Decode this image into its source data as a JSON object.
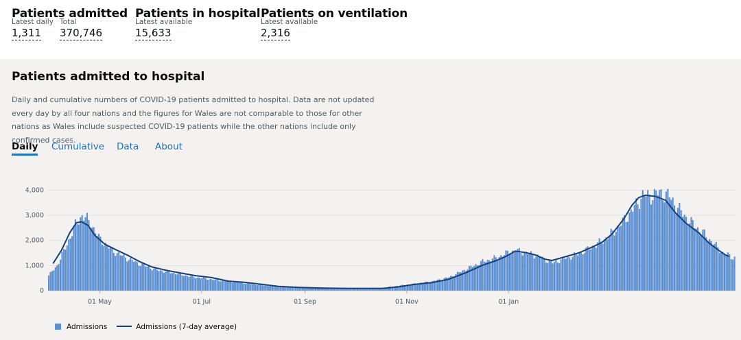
{
  "summary": {
    "admitted": {
      "title": "Patients admitted",
      "daily_label": "Latest daily",
      "daily_value": "1,311",
      "total_label": "Total",
      "total_value": "370,746"
    },
    "in_hospital": {
      "title": "Patients in hospital",
      "label": "Latest available",
      "value": "15,633"
    },
    "ventilation": {
      "title": "Patients on ventilation",
      "label": "Latest available",
      "value": "2,316"
    }
  },
  "card": {
    "title": "Patients admitted to hospital",
    "description": "Daily and cumulative numbers of COVID-19 patients admitted to hospital. Data are not updated every day by all four nations and the figures for Wales are not comparable to those for other nations as Wales include suspected COVID-19 patients while the other nations include only confirmed cases.",
    "tabs": [
      "Daily",
      "Cumulative",
      "Data",
      "About"
    ],
    "active_tab": "Daily"
  },
  "legend": {
    "bars": "Admissions",
    "line": "Admissions (7-day average)"
  },
  "colors": {
    "bar": "#5b8fd1",
    "line": "#12407f",
    "accent": "#1d70b8"
  },
  "chart_data": {
    "type": "bar",
    "title": "Patients admitted to hospital",
    "ylim": [
      0,
      4200
    ],
    "y_ticks": [
      "0",
      "1,000",
      "2,000",
      "3,000",
      "4,000"
    ],
    "x_tick_labels": [
      "01 May",
      "01 Jul",
      "01 Sep",
      "01 Nov",
      "01 Jan"
    ],
    "series": [
      {
        "name": "Admissions",
        "kind": "bar",
        "control_points_day_value": [
          [
            0,
            600
          ],
          [
            5,
            1000
          ],
          [
            10,
            1700
          ],
          [
            16,
            2600
          ],
          [
            20,
            3000
          ],
          [
            25,
            2700
          ],
          [
            30,
            2100
          ],
          [
            38,
            1600
          ],
          [
            45,
            1350
          ],
          [
            55,
            1050
          ],
          [
            65,
            820
          ],
          [
            75,
            700
          ],
          [
            85,
            560
          ],
          [
            95,
            470
          ],
          [
            105,
            380
          ],
          [
            115,
            320
          ],
          [
            125,
            230
          ],
          [
            135,
            170
          ],
          [
            145,
            130
          ],
          [
            160,
            100
          ],
          [
            175,
            90
          ],
          [
            190,
            90
          ],
          [
            200,
            110
          ],
          [
            210,
            200
          ],
          [
            220,
            280
          ],
          [
            230,
            370
          ],
          [
            240,
            530
          ],
          [
            250,
            850
          ],
          [
            260,
            1150
          ],
          [
            268,
            1300
          ],
          [
            275,
            1500
          ],
          [
            280,
            1600
          ],
          [
            285,
            1520
          ],
          [
            292,
            1400
          ],
          [
            298,
            1220
          ],
          [
            302,
            1100
          ],
          [
            308,
            1250
          ],
          [
            315,
            1400
          ],
          [
            322,
            1600
          ],
          [
            330,
            1900
          ],
          [
            338,
            2300
          ],
          [
            345,
            2800
          ],
          [
            352,
            3400
          ],
          [
            356,
            3800
          ],
          [
            360,
            3750
          ],
          [
            366,
            3900
          ],
          [
            372,
            3750
          ],
          [
            378,
            3200
          ],
          [
            385,
            2700
          ],
          [
            392,
            2300
          ],
          [
            398,
            1900
          ],
          [
            404,
            1500
          ],
          [
            410,
            1320
          ]
        ]
      },
      {
        "name": "Admissions (7-day average)",
        "kind": "line",
        "control_points_day_value": [
          [
            3,
            1080
          ],
          [
            8,
            1600
          ],
          [
            13,
            2300
          ],
          [
            17,
            2700
          ],
          [
            20,
            2740
          ],
          [
            24,
            2600
          ],
          [
            28,
            2200
          ],
          [
            34,
            1850
          ],
          [
            40,
            1650
          ],
          [
            48,
            1400
          ],
          [
            55,
            1150
          ],
          [
            62,
            950
          ],
          [
            70,
            820
          ],
          [
            78,
            720
          ],
          [
            88,
            600
          ],
          [
            98,
            520
          ],
          [
            108,
            380
          ],
          [
            118,
            330
          ],
          [
            128,
            250
          ],
          [
            138,
            170
          ],
          [
            150,
            130
          ],
          [
            165,
            100
          ],
          [
            180,
            90
          ],
          [
            200,
            90
          ],
          [
            210,
            150
          ],
          [
            220,
            250
          ],
          [
            230,
            320
          ],
          [
            240,
            450
          ],
          [
            250,
            700
          ],
          [
            260,
            1000
          ],
          [
            268,
            1180
          ],
          [
            274,
            1350
          ],
          [
            280,
            1570
          ],
          [
            286,
            1520
          ],
          [
            292,
            1420
          ],
          [
            298,
            1250
          ],
          [
            302,
            1200
          ],
          [
            310,
            1350
          ],
          [
            318,
            1500
          ],
          [
            325,
            1700
          ],
          [
            332,
            1920
          ],
          [
            338,
            2250
          ],
          [
            345,
            2850
          ],
          [
            350,
            3400
          ],
          [
            354,
            3700
          ],
          [
            358,
            3800
          ],
          [
            364,
            3750
          ],
          [
            370,
            3600
          ],
          [
            376,
            3100
          ],
          [
            382,
            2700
          ],
          [
            390,
            2300
          ],
          [
            396,
            1900
          ],
          [
            402,
            1600
          ],
          [
            406,
            1420
          ],
          [
            408,
            1360
          ]
        ]
      }
    ]
  }
}
